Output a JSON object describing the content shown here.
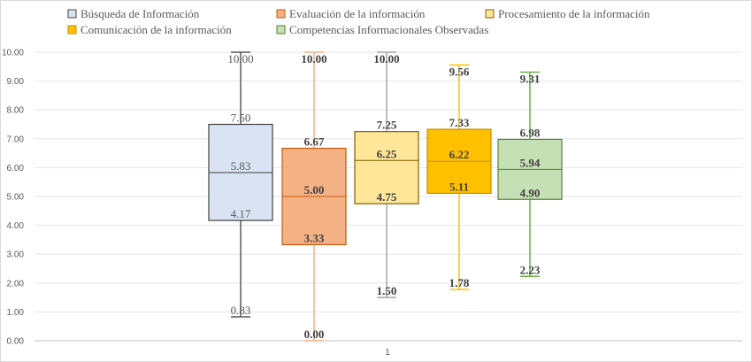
{
  "chart_data": {
    "type": "boxplot",
    "categories": [
      "1"
    ],
    "ylim": [
      0,
      10
    ],
    "yticks": [
      "0.00",
      "1.00",
      "2.00",
      "3.00",
      "4.00",
      "5.00",
      "6.00",
      "7.00",
      "8.00",
      "9.00",
      "10.00"
    ],
    "grid": true,
    "legend_position": "top",
    "series": [
      {
        "name": "Búsqueda de Información",
        "min": 0.83,
        "q1": 4.17,
        "median": 5.83,
        "q3": 7.5,
        "max": 10.0,
        "labels": {
          "min": "0.83",
          "q1": "4.17",
          "median": "5.83",
          "q3": "7.50",
          "max": "10.00"
        },
        "fill": "#dae3f3",
        "stroke": "#404040",
        "whisker": "#595959"
      },
      {
        "name": "Evaluación de la información",
        "min": 0.0,
        "q1": 3.33,
        "median": 5.0,
        "q3": 6.67,
        "max": 10.0,
        "labels": {
          "min": "0.00",
          "q1": "3.33",
          "median": "5.00",
          "q3": "6.67",
          "max": "10.00"
        },
        "fill": "#f4b183",
        "stroke": "#c55a11",
        "whisker": "#f4b183"
      },
      {
        "name": "Procesamiento de la información",
        "min": 1.5,
        "q1": 4.75,
        "median": 6.25,
        "q3": 7.25,
        "max": 10.0,
        "labels": {
          "min": "1.50",
          "q1": "4.75",
          "median": "6.25",
          "q3": "7.25",
          "max": "10.00"
        },
        "fill": "#ffe699",
        "stroke": "#7f6000",
        "whisker": "#a6a6a6"
      },
      {
        "name": "Comunicación de la información",
        "min": 1.78,
        "q1": 5.11,
        "median": 6.22,
        "q3": 7.33,
        "max": 9.56,
        "labels": {
          "min": "1.78",
          "q1": "5.11",
          "median": "6.22",
          "q3": "7.33",
          "max": "9.56"
        },
        "fill": "#ffc000",
        "stroke": "#bf9000",
        "whisker": "#ffc000"
      },
      {
        "name": "Competencias Informacionales Observadas",
        "min": 2.23,
        "q1": 4.9,
        "median": 5.94,
        "q3": 6.98,
        "max": 9.31,
        "labels": {
          "min": "2.23",
          "q1": "4.90",
          "median": "5.94",
          "q3": "6.98",
          "max": "9.31"
        },
        "fill": "#c5e0b4",
        "stroke": "#548235",
        "whisker": "#70ad47"
      }
    ]
  }
}
